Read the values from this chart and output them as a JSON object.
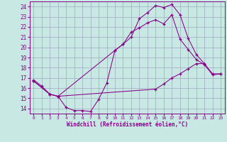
{
  "xlabel": "Windchill (Refroidissement éolien,°C)",
  "xlim": [
    -0.5,
    23.5
  ],
  "ylim": [
    13.5,
    24.5
  ],
  "xticks": [
    0,
    1,
    2,
    3,
    4,
    5,
    6,
    7,
    8,
    9,
    10,
    11,
    12,
    13,
    14,
    15,
    16,
    17,
    18,
    19,
    20,
    21,
    22,
    23
  ],
  "yticks": [
    14,
    15,
    16,
    17,
    18,
    19,
    20,
    21,
    22,
    23,
    24
  ],
  "bg_color": "#c8e8e4",
  "grid_color": "#a0a8c0",
  "line_color": "#880088",
  "curve1_x": [
    0,
    1,
    2,
    3,
    4,
    5,
    6,
    7,
    8,
    9,
    10,
    11,
    12,
    13,
    14,
    15,
    16,
    17,
    18,
    19,
    20,
    21
  ],
  "curve1_y": [
    16.8,
    16.2,
    15.4,
    15.2,
    14.1,
    13.8,
    13.8,
    13.7,
    14.9,
    16.5,
    19.7,
    20.3,
    21.0,
    22.8,
    23.4,
    24.1,
    23.9,
    24.2,
    23.2,
    20.9,
    19.3,
    18.4
  ],
  "curve2_x": [
    0,
    2,
    3,
    10,
    11,
    12,
    13,
    14,
    15,
    16,
    17,
    18,
    19,
    20,
    21,
    22,
    23
  ],
  "curve2_y": [
    16.7,
    15.4,
    15.2,
    19.7,
    20.3,
    21.5,
    21.9,
    22.4,
    22.7,
    22.3,
    23.2,
    20.8,
    19.8,
    18.8,
    18.3,
    17.3,
    17.4
  ],
  "curve3_x": [
    0,
    2,
    3,
    15,
    16,
    17,
    18,
    19,
    20,
    21,
    22,
    23
  ],
  "curve3_y": [
    16.7,
    15.4,
    15.2,
    15.9,
    16.4,
    17.0,
    17.4,
    17.9,
    18.4,
    18.4,
    17.4,
    17.4
  ]
}
